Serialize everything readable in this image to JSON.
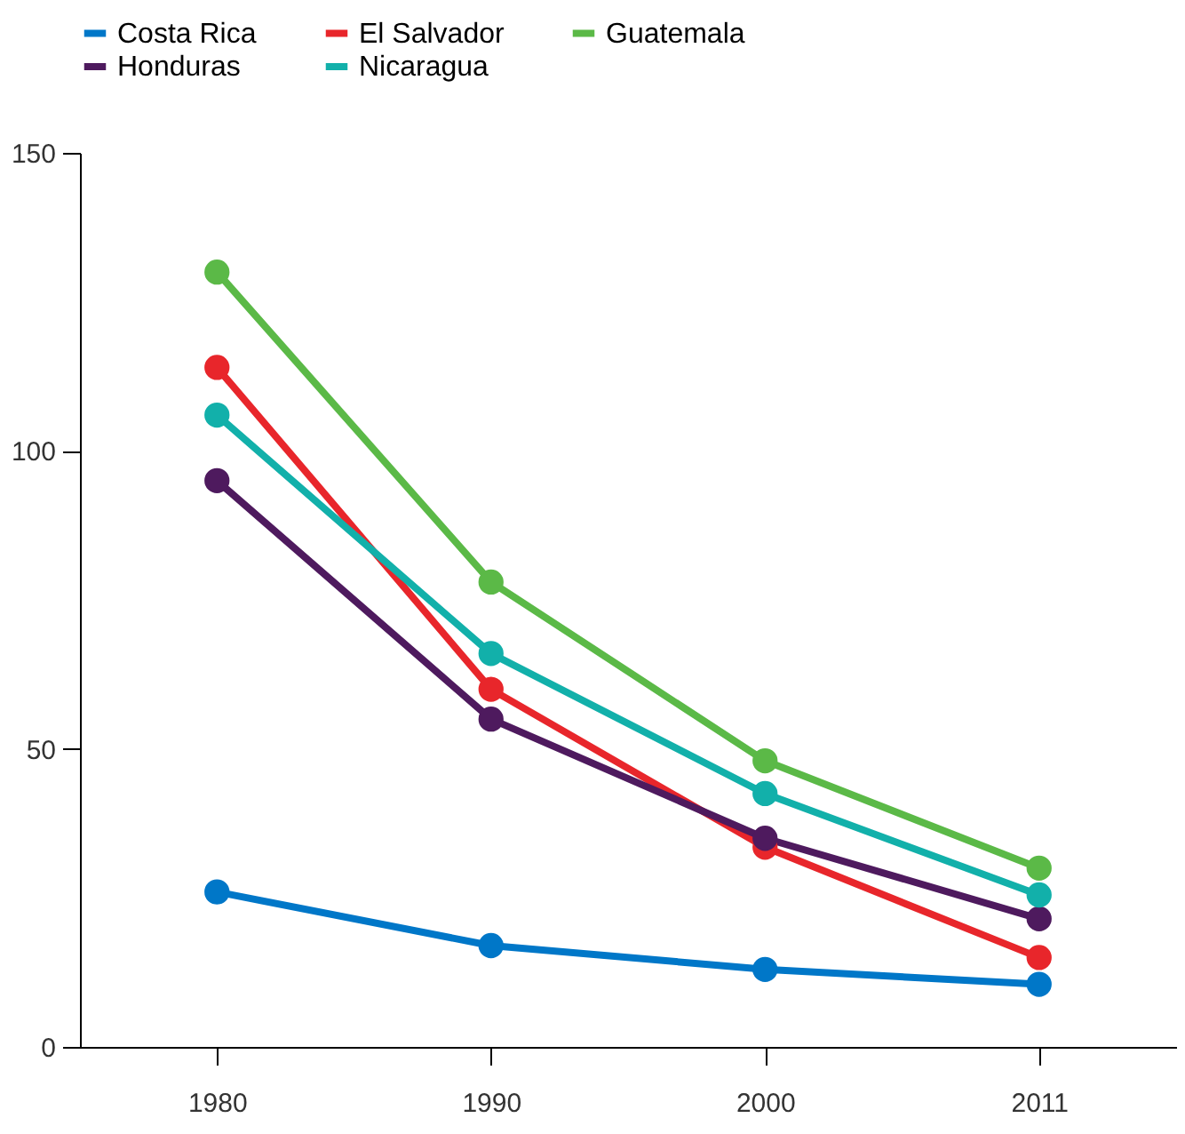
{
  "chart_data": {
    "type": "line",
    "categories": [
      "1980",
      "1990",
      "2000",
      "2011"
    ],
    "series": [
      {
        "name": "Costa Rica",
        "color": "#0077c8",
        "values": [
          26,
          17,
          13,
          10.5
        ]
      },
      {
        "name": "El Salvador",
        "color": "#e8262b",
        "values": [
          114,
          60,
          33.5,
          15
        ]
      },
      {
        "name": "Guatemala",
        "color": "#5bb947",
        "values": [
          130,
          78,
          48,
          30
        ]
      },
      {
        "name": "Honduras",
        "color": "#4e1a5e",
        "values": [
          95,
          55,
          35,
          21.5
        ]
      },
      {
        "name": "Nicaragua",
        "color": "#12b0aa",
        "values": [
          106,
          66,
          42.5,
          25.5
        ]
      }
    ],
    "ylim": [
      0,
      150
    ],
    "yticks": [
      0,
      50,
      100,
      150
    ],
    "grid": false,
    "legend": "top",
    "marker": "circle",
    "line_style": "solid"
  }
}
